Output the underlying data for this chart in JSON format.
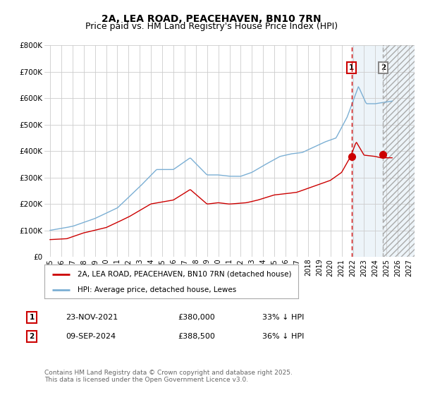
{
  "title": "2A, LEA ROAD, PEACEHAVEN, BN10 7RN",
  "subtitle": "Price paid vs. HM Land Registry's House Price Index (HPI)",
  "title_fontsize": 10,
  "subtitle_fontsize": 9,
  "background_color": "#ffffff",
  "plot_bg_color": "#ffffff",
  "grid_color": "#cccccc",
  "hpi_color": "#7bafd4",
  "price_color": "#cc0000",
  "xlim": [
    1994.5,
    2027.5
  ],
  "ylim": [
    0,
    800000
  ],
  "yticks": [
    0,
    100000,
    200000,
    300000,
    400000,
    500000,
    600000,
    700000,
    800000
  ],
  "ytick_labels": [
    "£0",
    "£100K",
    "£200K",
    "£300K",
    "£400K",
    "£500K",
    "£600K",
    "£700K",
    "£800K"
  ],
  "xticks": [
    1995,
    1996,
    1997,
    1998,
    1999,
    2000,
    2001,
    2002,
    2003,
    2004,
    2005,
    2006,
    2007,
    2008,
    2009,
    2010,
    2011,
    2012,
    2013,
    2014,
    2015,
    2016,
    2017,
    2018,
    2019,
    2020,
    2021,
    2022,
    2023,
    2024,
    2025,
    2026,
    2027
  ],
  "marker1_x": 2021.9,
  "marker1_y_price": 380000,
  "marker1_label": "1",
  "marker1_date": "23-NOV-2021",
  "marker1_price": "£380,000",
  "marker1_hpi_txt": "33% ↓ HPI",
  "marker2_x": 2024.69,
  "marker2_y_price": 388500,
  "marker2_label": "2",
  "marker2_date": "09-SEP-2024",
  "marker2_price": "£388,500",
  "marker2_hpi_txt": "36% ↓ HPI",
  "vline1_x": 2021.9,
  "vline2_x": 2024.69,
  "shaded_start": 2021.9,
  "shaded_end": 2027.5,
  "hatch_start": 2024.69,
  "legend_label1": "2A, LEA ROAD, PEACEHAVEN, BN10 7RN (detached house)",
  "legend_label2": "HPI: Average price, detached house, Lewes",
  "footer": "Contains HM Land Registry data © Crown copyright and database right 2025.\nThis data is licensed under the Open Government Licence v3.0."
}
